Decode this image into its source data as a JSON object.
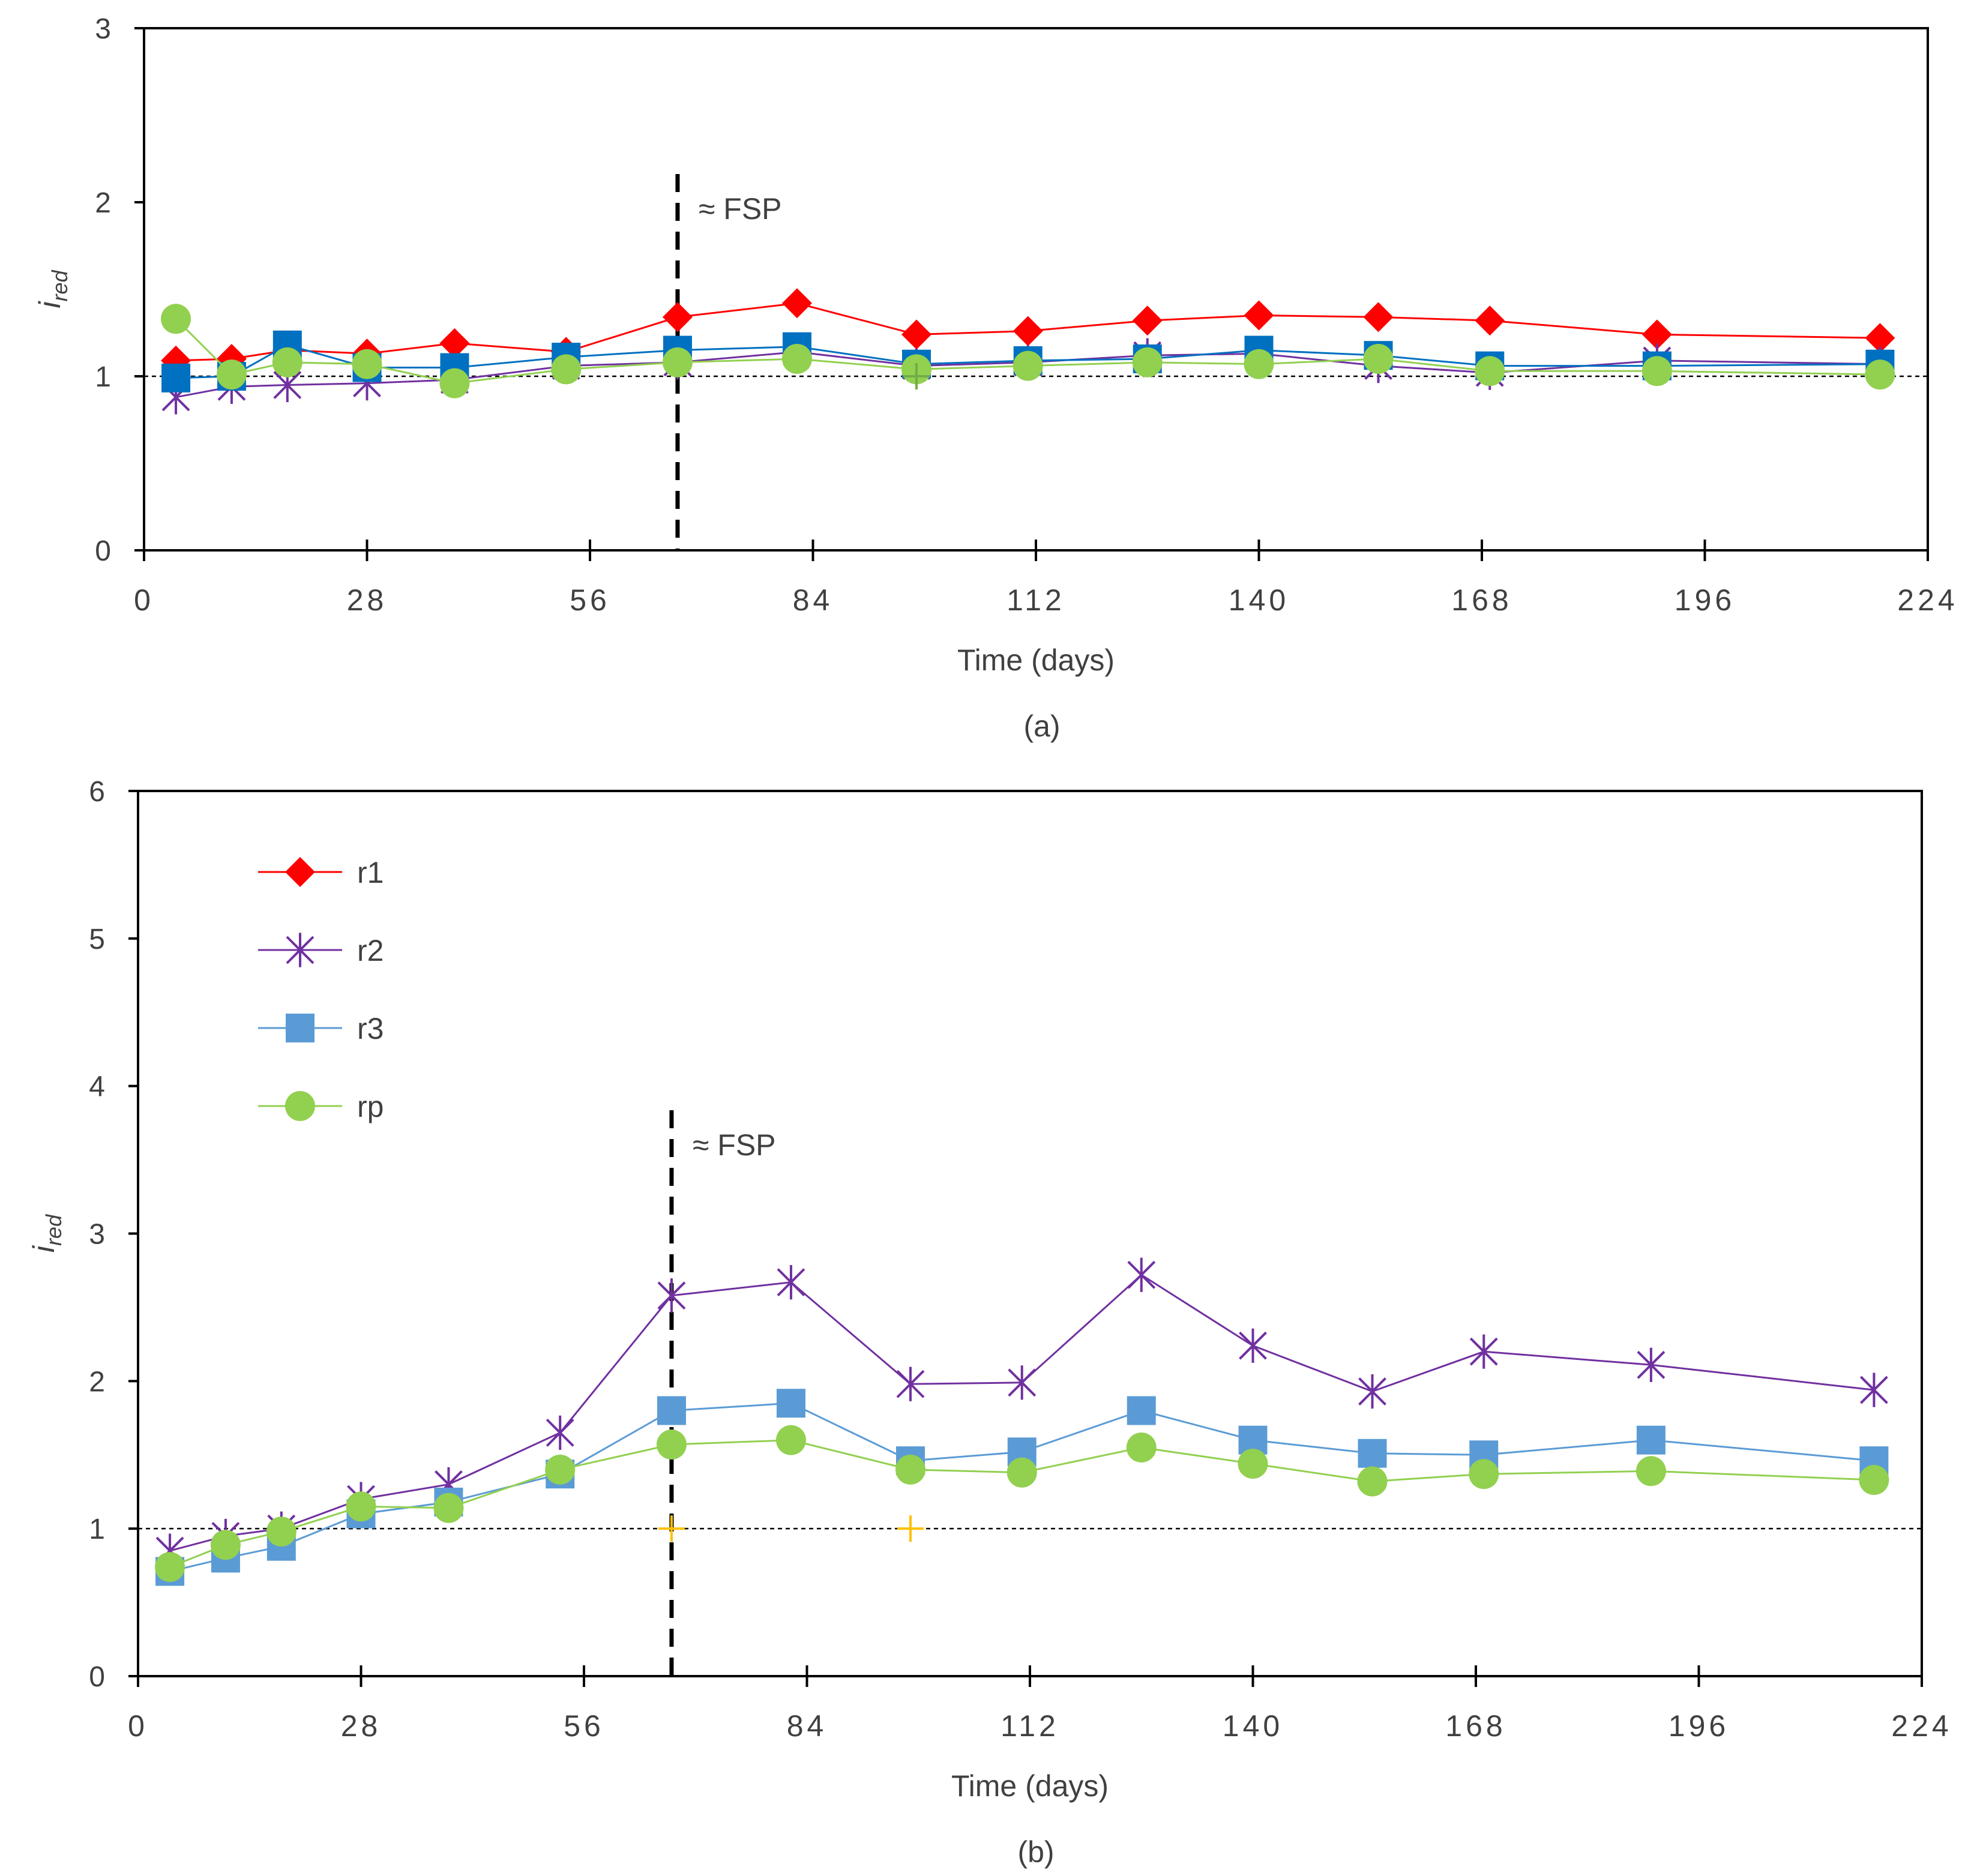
{
  "chart_data": [
    {
      "type": "line",
      "panel_label": "(a)",
      "xlabel": "Time (days)",
      "ylabel_main": "i",
      "ylabel_sub": "red",
      "xlim": [
        0,
        224
      ],
      "ylim": [
        0,
        3
      ],
      "xticks": [
        0,
        28,
        56,
        84,
        112,
        140,
        168,
        196,
        224
      ],
      "yticks": [
        0,
        1,
        2,
        3
      ],
      "reference_line": {
        "y": 1
      },
      "annotation": {
        "x": 67,
        "text": "≈ FSP"
      },
      "extra_markers": [
        {
          "x": 97,
          "y": 1.0,
          "color": "#70AD47"
        }
      ],
      "series": [
        {
          "name": "r1",
          "marker": "diamond",
          "color": "#FF0000",
          "x": [
            4,
            11,
            18,
            28,
            39,
            53,
            67,
            82,
            97,
            111,
            126,
            140,
            155,
            169,
            190,
            218
          ],
          "values": [
            1.09,
            1.1,
            1.15,
            1.13,
            1.19,
            1.14,
            1.34,
            1.42,
            1.24,
            1.26,
            1.32,
            1.35,
            1.34,
            1.32,
            1.24,
            1.22
          ]
        },
        {
          "name": "r2",
          "marker": "star",
          "color": "#7030A0",
          "x": [
            4,
            11,
            18,
            28,
            39,
            53,
            67,
            82,
            97,
            111,
            126,
            140,
            155,
            169,
            190,
            218
          ],
          "values": [
            0.88,
            0.94,
            0.95,
            0.96,
            0.98,
            1.06,
            1.08,
            1.14,
            1.06,
            1.08,
            1.12,
            1.13,
            1.06,
            1.02,
            1.09,
            1.07
          ]
        },
        {
          "name": "r3",
          "marker": "square",
          "color": "#0070C0",
          "x": [
            4,
            11,
            18,
            28,
            39,
            53,
            67,
            82,
            97,
            111,
            126,
            140,
            155,
            169,
            190,
            218
          ],
          "values": [
            0.99,
            1.0,
            1.18,
            1.05,
            1.05,
            1.11,
            1.15,
            1.17,
            1.07,
            1.09,
            1.1,
            1.15,
            1.12,
            1.06,
            1.06,
            1.07
          ]
        },
        {
          "name": "rp",
          "marker": "circle",
          "color": "#92D050",
          "x": [
            4,
            11,
            18,
            28,
            39,
            53,
            67,
            82,
            97,
            111,
            126,
            140,
            155,
            169,
            190,
            218
          ],
          "values": [
            1.33,
            1.01,
            1.08,
            1.07,
            0.96,
            1.04,
            1.08,
            1.1,
            1.04,
            1.06,
            1.08,
            1.07,
            1.1,
            1.03,
            1.03,
            1.01
          ]
        }
      ]
    },
    {
      "type": "line",
      "panel_label": "(b)",
      "xlabel": "Time (days)",
      "ylabel_main": "i",
      "ylabel_sub": "red",
      "xlim": [
        0,
        224
      ],
      "ylim": [
        0,
        6
      ],
      "xticks": [
        0,
        28,
        56,
        84,
        112,
        140,
        168,
        196,
        224
      ],
      "yticks": [
        0,
        1,
        2,
        3,
        4,
        5,
        6
      ],
      "reference_line": {
        "y": 1
      },
      "annotation": {
        "x": 67,
        "text": "≈ FSP"
      },
      "legend_position": "top-left",
      "extra_markers": [
        {
          "x": 67,
          "y": 1.0,
          "color": "#FFC000"
        },
        {
          "x": 97,
          "y": 1.0,
          "color": "#FFC000"
        }
      ],
      "series": [
        {
          "name": "r1",
          "marker": "diamond",
          "color": "#FF0000",
          "x": [],
          "values": []
        },
        {
          "name": "r2",
          "marker": "star",
          "color": "#7030A0",
          "x": [
            4,
            11,
            18,
            28,
            39,
            53,
            67,
            82,
            97,
            111,
            126,
            140,
            155,
            169,
            190,
            218
          ],
          "values": [
            0.85,
            0.95,
            1.0,
            1.2,
            1.3,
            1.65,
            2.58,
            2.67,
            1.98,
            1.99,
            2.72,
            2.24,
            1.93,
            2.2,
            2.11,
            1.94
          ]
        },
        {
          "name": "r3",
          "marker": "square",
          "color": "#5B9BD5",
          "x": [
            4,
            11,
            18,
            28,
            39,
            53,
            67,
            82,
            97,
            111,
            126,
            140,
            155,
            169,
            190,
            218
          ],
          "values": [
            0.71,
            0.8,
            0.88,
            1.1,
            1.18,
            1.37,
            1.8,
            1.85,
            1.46,
            1.52,
            1.8,
            1.6,
            1.51,
            1.5,
            1.6,
            1.46
          ]
        },
        {
          "name": "rp",
          "marker": "circle",
          "color": "#92D050",
          "x": [
            4,
            11,
            18,
            28,
            39,
            53,
            67,
            82,
            97,
            111,
            126,
            140,
            155,
            169,
            190,
            218
          ],
          "values": [
            0.74,
            0.89,
            0.98,
            1.15,
            1.14,
            1.4,
            1.57,
            1.6,
            1.4,
            1.38,
            1.55,
            1.44,
            1.32,
            1.37,
            1.39,
            1.33
          ]
        }
      ]
    }
  ]
}
